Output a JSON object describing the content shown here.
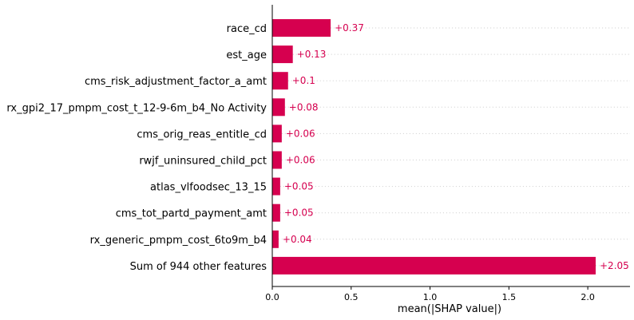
{
  "chart_data": {
    "type": "bar",
    "orientation": "horizontal",
    "categories": [
      "race_cd",
      "est_age",
      "cms_risk_adjustment_factor_a_amt",
      "rx_gpi2_17_pmpm_cost_t_12-9-6m_b4_No Activity",
      "cms_orig_reas_entitle_cd",
      "rwjf_uninsured_child_pct",
      "atlas_vlfoodsec_13_15",
      "cms_tot_partd_payment_amt",
      "rx_generic_pmpm_cost_6to9m_b4",
      "Sum of 944 other features"
    ],
    "values": [
      0.37,
      0.13,
      0.1,
      0.08,
      0.06,
      0.06,
      0.05,
      0.05,
      0.04,
      2.05
    ],
    "value_labels": [
      "+0.37",
      "+0.13",
      "+0.1",
      "+0.08",
      "+0.06",
      "+0.06",
      "+0.05",
      "+0.05",
      "+0.04",
      "+2.05"
    ],
    "xlabel": "mean(|SHAP value|)",
    "x_ticks": [
      0.0,
      0.5,
      1.0,
      1.5,
      2.0
    ],
    "x_tick_labels": [
      "0.0",
      "0.5",
      "1.0",
      "1.5",
      "2.0"
    ],
    "xlim": [
      0,
      2.25
    ],
    "grid": "dotted horizontal guide lines",
    "colors": {
      "bar": "#d6004f",
      "label": "#d6004f",
      "guide": "#cccccc",
      "axis": "#000000"
    }
  }
}
